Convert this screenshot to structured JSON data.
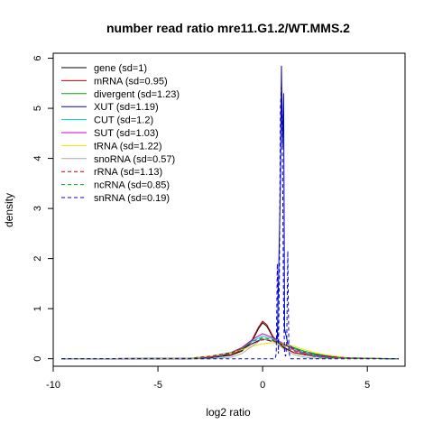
{
  "chart_data": {
    "type": "line",
    "title": "number read ratio mre11.G1.2/WT.MMS.2",
    "xlabel": "log2 ratio",
    "ylabel": "density",
    "xlim": [
      -10,
      6.8
    ],
    "ylim": [
      -0.15,
      6.1
    ],
    "xticks": [
      -10,
      -5,
      0,
      5
    ],
    "yticks": [
      0,
      1,
      2,
      3,
      4,
      5,
      6
    ],
    "grid": false,
    "legend_position": "top-left",
    "series": [
      {
        "name": "gene (sd=1)",
        "color": "#000000",
        "dash": "solid",
        "x": [
          -9.6,
          -3.5,
          -2.5,
          -1.5,
          -1.0,
          -0.5,
          -0.2,
          0.0,
          0.2,
          0.5,
          1.0,
          1.5,
          2.0,
          2.5,
          3.0,
          4.0,
          6.5
        ],
        "y": [
          0,
          0,
          0.02,
          0.07,
          0.15,
          0.35,
          0.6,
          0.72,
          0.65,
          0.42,
          0.22,
          0.12,
          0.08,
          0.05,
          0.03,
          0.01,
          0
        ]
      },
      {
        "name": "mRNA (sd=0.95)",
        "color": "#cc0000",
        "dash": "solid",
        "x": [
          -9.6,
          -3.5,
          -2.5,
          -1.5,
          -1.0,
          -0.5,
          -0.2,
          0.0,
          0.2,
          0.5,
          1.0,
          1.5,
          2.0,
          2.5,
          3.0,
          4.0,
          6.5
        ],
        "y": [
          0,
          0,
          0.02,
          0.08,
          0.17,
          0.38,
          0.63,
          0.75,
          0.68,
          0.44,
          0.23,
          0.12,
          0.08,
          0.05,
          0.03,
          0.01,
          0
        ]
      },
      {
        "name": "divergent (sd=1.23)",
        "color": "#00aa00",
        "dash": "solid",
        "x": [
          -9.6,
          -3.5,
          -2.5,
          -1.5,
          -1.0,
          -0.5,
          0.0,
          0.5,
          1.0,
          1.5,
          2.0,
          2.5,
          3.0,
          4.0,
          6.5
        ],
        "y": [
          0,
          0.01,
          0.04,
          0.12,
          0.2,
          0.3,
          0.4,
          0.35,
          0.28,
          0.22,
          0.15,
          0.1,
          0.06,
          0.02,
          0
        ]
      },
      {
        "name": "XUT (sd=1.19)",
        "color": "#0000cc",
        "dash": "solid",
        "x": [
          -9.6,
          -3.0,
          -2.0,
          -1.0,
          -0.5,
          0.0,
          0.4,
          0.7,
          0.85,
          0.9,
          0.95,
          1.0,
          1.05,
          1.2,
          1.5,
          2.0,
          2.5,
          3.0,
          4.0,
          6.5
        ],
        "y": [
          0,
          0.01,
          0.05,
          0.18,
          0.3,
          0.4,
          0.35,
          0.4,
          3.5,
          5.85,
          4.2,
          5.3,
          0.6,
          0.3,
          0.2,
          0.12,
          0.08,
          0.05,
          0.01,
          0
        ]
      },
      {
        "name": "CUT (sd=1.2)",
        "color": "#00cccc",
        "dash": "solid",
        "x": [
          -9.6,
          -3.5,
          -2.5,
          -1.5,
          -1.0,
          -0.5,
          0.0,
          0.5,
          1.0,
          1.5,
          2.0,
          2.5,
          3.0,
          4.0,
          6.5
        ],
        "y": [
          0,
          0.01,
          0.05,
          0.13,
          0.22,
          0.35,
          0.45,
          0.4,
          0.3,
          0.2,
          0.12,
          0.07,
          0.04,
          0.01,
          0
        ]
      },
      {
        "name": "SUT (sd=1.03)",
        "color": "#cc00cc",
        "dash": "solid",
        "x": [
          -9.6,
          -3.5,
          -2.5,
          -1.5,
          -1.0,
          -0.5,
          0.0,
          0.5,
          1.0,
          1.5,
          2.0,
          2.5,
          3.0,
          4.0,
          6.5
        ],
        "y": [
          0,
          0.01,
          0.04,
          0.12,
          0.22,
          0.38,
          0.5,
          0.42,
          0.3,
          0.17,
          0.1,
          0.05,
          0.03,
          0.01,
          0
        ]
      },
      {
        "name": "tRNA (sd=1.22)",
        "color": "#e6e600",
        "dash": "solid",
        "x": [
          -9.6,
          -3.5,
          -2.5,
          -1.5,
          -1.0,
          -0.5,
          0.0,
          0.5,
          1.0,
          1.5,
          2.0,
          2.5,
          3.0,
          3.5,
          4.0,
          6.5
        ],
        "y": [
          0,
          0.01,
          0.05,
          0.12,
          0.18,
          0.25,
          0.3,
          0.32,
          0.3,
          0.25,
          0.18,
          0.12,
          0.08,
          0.05,
          0.02,
          0
        ]
      },
      {
        "name": "snoRNA (sd=0.57)",
        "color": "#aaaaaa",
        "dash": "solid",
        "x": [
          -9.6,
          -2.5,
          -1.5,
          -1.0,
          -0.5,
          0.0,
          0.5,
          1.0,
          1.5,
          2.0,
          2.5,
          6.5
        ],
        "y": [
          0,
          0,
          0.03,
          0.1,
          0.25,
          0.4,
          0.35,
          0.2,
          0.08,
          0.03,
          0.01,
          0
        ]
      },
      {
        "name": "rRNA (sd=1.13)",
        "color": "#cc0000",
        "dash": "dashed",
        "x": [
          -9.6,
          -3.5,
          -2.5,
          -1.5,
          -1.0,
          -0.5,
          0.0,
          0.5,
          1.0,
          1.5,
          2.0,
          2.5,
          3.0,
          4.0,
          6.5
        ],
        "y": [
          0,
          0.01,
          0.05,
          0.12,
          0.2,
          0.3,
          0.38,
          0.36,
          0.28,
          0.2,
          0.13,
          0.08,
          0.05,
          0.02,
          0
        ]
      },
      {
        "name": "ncRNA (sd=0.85)",
        "color": "#00aa00",
        "dash": "dashed",
        "x": [
          -9.6,
          -3.0,
          -2.0,
          -1.5,
          -1.0,
          -0.5,
          0.0,
          0.5,
          1.0,
          1.5,
          2.0,
          2.5,
          3.0,
          6.5
        ],
        "y": [
          0,
          0.01,
          0.04,
          0.1,
          0.2,
          0.34,
          0.42,
          0.38,
          0.25,
          0.15,
          0.08,
          0.04,
          0.02,
          0
        ]
      },
      {
        "name": "snRNA (sd=0.19)",
        "color": "#0000cc",
        "dash": "dashed",
        "x": [
          -9.6,
          0.6,
          0.65,
          0.7,
          0.75,
          0.8,
          0.85,
          0.9,
          0.95,
          1.0,
          1.05,
          1.1,
          1.15,
          1.2,
          1.25,
          1.3,
          1.35,
          1.4,
          6.5
        ],
        "y": [
          0,
          0,
          0.1,
          1.9,
          0.1,
          1.6,
          5.0,
          5.5,
          3.9,
          1.0,
          0.1,
          0.05,
          0.3,
          2.15,
          0.2,
          0.02,
          0,
          0,
          0
        ]
      }
    ]
  }
}
